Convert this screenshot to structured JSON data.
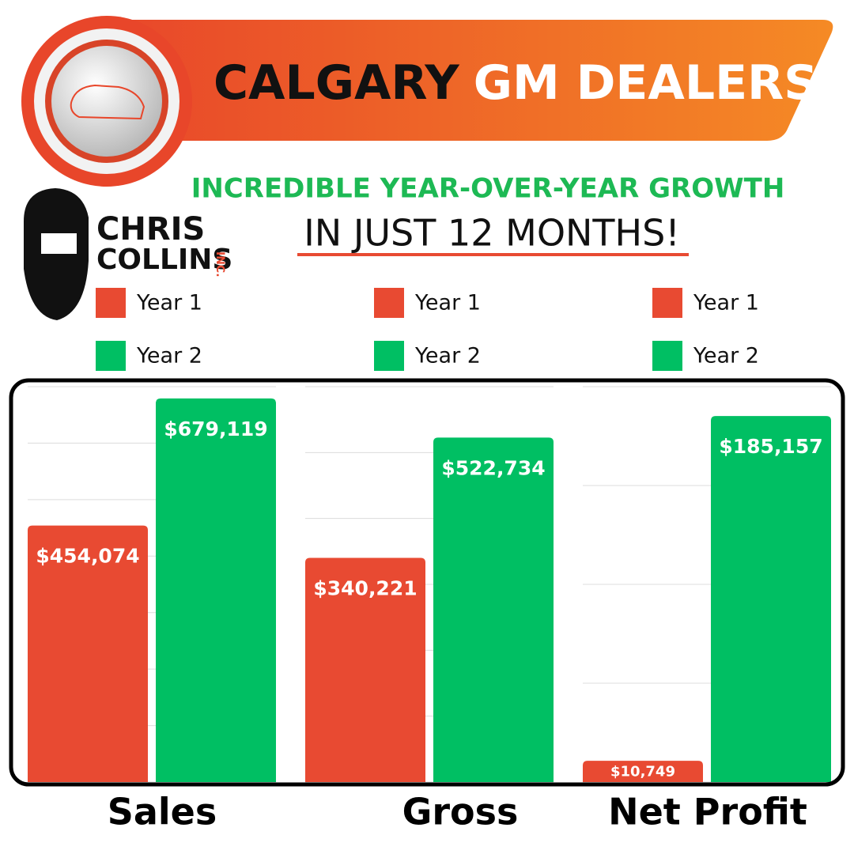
{
  "header": {
    "title_part1": "CALGARY",
    "title_part2": "GM DEALERSHIP",
    "subtitle": "INCREDIBLE YEAR-OVER-YEAR GROWTH",
    "tagline": "IN JUST 12 MONTHS!"
  },
  "logo": {
    "line1": "CHRIS",
    "line2": "COLLINS",
    "suffix": "INC."
  },
  "chart_data": [
    {
      "type": "bar",
      "categories": [
        "Sales"
      ],
      "ylim": [
        0,
        700000
      ],
      "yticks": [
        0,
        100000,
        200000,
        300000,
        400000,
        500000,
        600000,
        700000
      ],
      "grid": true,
      "series": [
        {
          "name": "Year 1",
          "color": "#e84a32",
          "values": [
            454074
          ],
          "value_labels": [
            "$454,074"
          ]
        },
        {
          "name": "Year 2",
          "color": "#00bf63",
          "values": [
            679119
          ],
          "value_labels": [
            "$679,119"
          ]
        }
      ]
    },
    {
      "type": "bar",
      "categories": [
        "Gross"
      ],
      "ylim": [
        0,
        600000
      ],
      "yticks": [
        0,
        100000,
        200000,
        300000,
        400000,
        500000,
        600000
      ],
      "grid": true,
      "series": [
        {
          "name": "Year 1",
          "color": "#e84a32",
          "values": [
            340221
          ],
          "value_labels": [
            "$340,221"
          ]
        },
        {
          "name": "Year 2",
          "color": "#00bf63",
          "values": [
            522734
          ],
          "value_labels": [
            "$522,734"
          ]
        }
      ]
    },
    {
      "type": "bar",
      "categories": [
        "Net Profit"
      ],
      "ylim": [
        0,
        200000
      ],
      "yticks": [
        0,
        50000,
        100000,
        150000,
        200000
      ],
      "grid": true,
      "series": [
        {
          "name": "Year 1",
          "color": "#e84a32",
          "values": [
            10749
          ],
          "value_labels": [
            "$10,749"
          ]
        },
        {
          "name": "Year 2",
          "color": "#00bf63",
          "values": [
            185157
          ],
          "value_labels": [
            "$185,157"
          ]
        }
      ]
    }
  ]
}
